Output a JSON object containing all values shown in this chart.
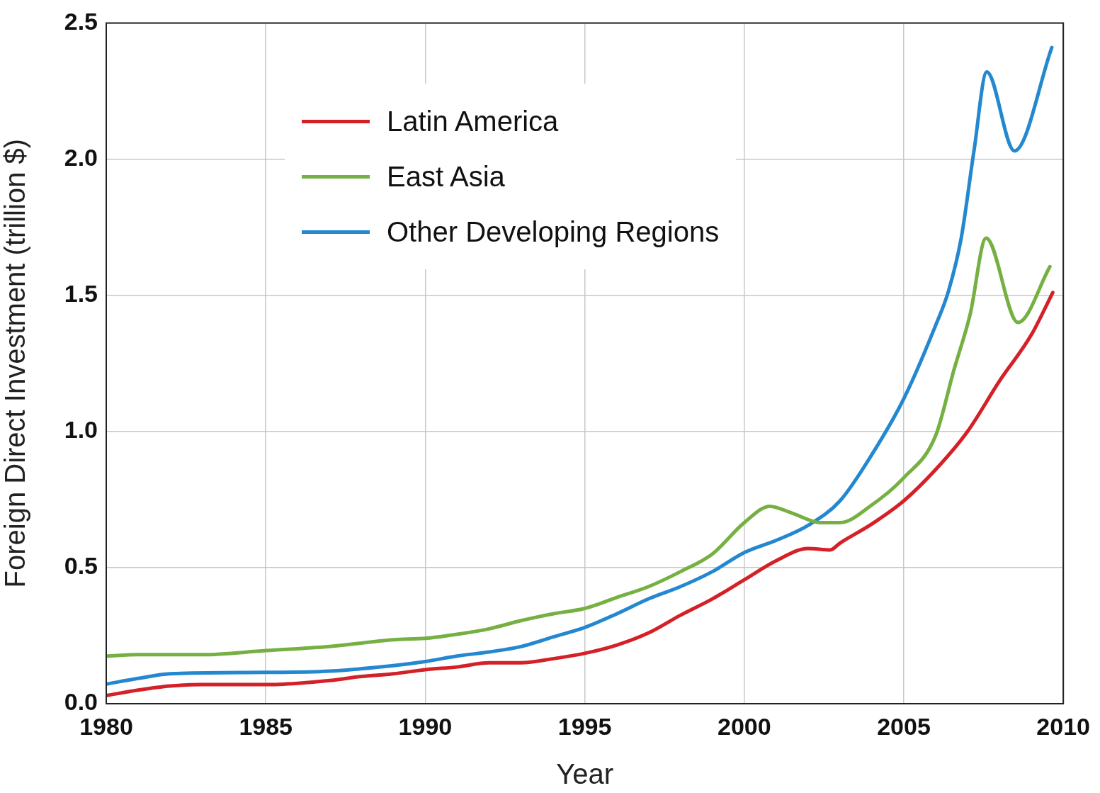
{
  "chart_data": {
    "type": "line",
    "xlabel": "Year",
    "ylabel": "Foreign Direct Investment (trillion $)",
    "xlim": [
      1980,
      2010
    ],
    "xticks": [
      1980,
      1985,
      1990,
      1995,
      2000,
      2005,
      2010
    ],
    "ylim": [
      0,
      2.5
    ],
    "yticks": [
      {
        "value": 0,
        "label": "0.0"
      },
      {
        "value": 0.5,
        "label": "0.5"
      },
      {
        "value": 1,
        "label": "1.0"
      },
      {
        "value": 1.5,
        "label": "1.5"
      },
      {
        "value": 2,
        "label": "2.0"
      },
      {
        "value": 2.5,
        "label": "2.5"
      }
    ],
    "grid": true,
    "legend": "top left",
    "marker": "none",
    "line_style": "solid",
    "series": [
      {
        "name": "Latin America",
        "color": "#d42027",
        "x": [
          1980,
          1981,
          1982,
          1983,
          1984,
          1985,
          1986,
          1987,
          1988,
          1989,
          1990,
          1991,
          1992,
          1993,
          1994,
          1995,
          1996,
          1997,
          1998,
          1999,
          2000,
          2001,
          2002,
          2002.7,
          2003,
          2004,
          2005,
          2006,
          2007,
          2008,
          2009,
          2009.67
        ],
        "values": [
          0.03,
          0.05,
          0.065,
          0.07,
          0.07,
          0.07,
          0.075,
          0.085,
          0.1,
          0.11,
          0.125,
          0.135,
          0.15,
          0.15,
          0.165,
          0.185,
          0.215,
          0.26,
          0.325,
          0.385,
          0.455,
          0.525,
          0.57,
          0.565,
          0.59,
          0.66,
          0.745,
          0.86,
          1.0,
          1.185,
          1.355,
          1.51
        ]
      },
      {
        "name": "East Asia",
        "color": "#76b043",
        "x": [
          1980,
          1981,
          1983,
          1985,
          1987,
          1989,
          1990,
          1991,
          1992,
          1993,
          1994,
          1995,
          1996,
          1997,
          1998,
          1999,
          2000,
          2000.8,
          2001.5,
          2002.4,
          2003,
          2004,
          2005,
          2006,
          2006.57,
          2007.08,
          2007.58,
          2008.58,
          2009.58
        ],
        "values": [
          0.175,
          0.18,
          0.18,
          0.195,
          0.21,
          0.235,
          0.24,
          0.255,
          0.275,
          0.305,
          0.33,
          0.35,
          0.39,
          0.43,
          0.485,
          0.55,
          0.665,
          0.725,
          0.7,
          0.665,
          0.665,
          0.73,
          0.83,
          0.985,
          1.225,
          1.43,
          1.71,
          1.4,
          1.605
        ]
      },
      {
        "name": "Other Developing Regions",
        "color": "#2388d0",
        "x": [
          1980,
          1981,
          1982,
          1985,
          1987,
          1989,
          1990,
          1991,
          1992,
          1993,
          1994,
          1995,
          1996,
          1997,
          1998,
          1999,
          2000,
          2001,
          2002,
          2003,
          2004,
          2005,
          2006,
          2006.4,
          2006.8,
          2007.2,
          2007.6,
          2008.47,
          2009.64
        ],
        "values": [
          0.072,
          0.093,
          0.11,
          0.115,
          0.12,
          0.14,
          0.155,
          0.175,
          0.19,
          0.21,
          0.245,
          0.28,
          0.33,
          0.385,
          0.43,
          0.485,
          0.555,
          0.6,
          0.655,
          0.745,
          0.915,
          1.12,
          1.39,
          1.515,
          1.71,
          2.03,
          2.32,
          2.03,
          2.41
        ]
      }
    ]
  }
}
